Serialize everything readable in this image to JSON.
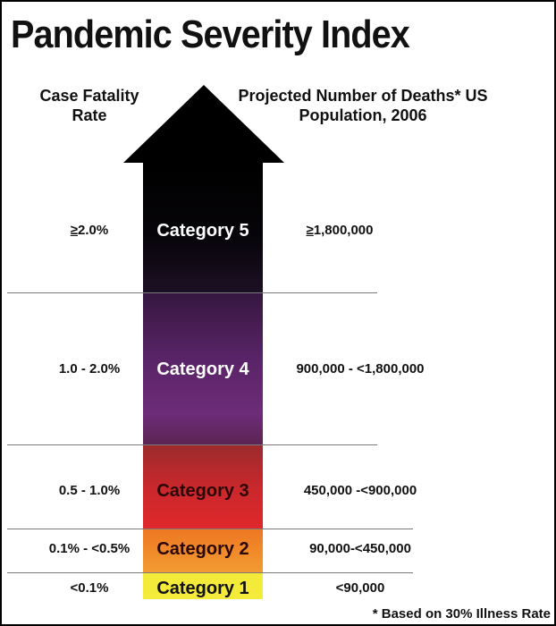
{
  "title": "Pandemic Severity Index",
  "headers": {
    "left": "Case Fatality Rate",
    "right": "Projected Number of Deaths* US Population, 2006"
  },
  "rows": [
    {
      "category": "Category 5",
      "cfr_prefix": "≥",
      "cfr": "2.0%",
      "deaths_prefix": "≥",
      "deaths": "1,800,000",
      "label_color": "#ffffff"
    },
    {
      "category": "Category 4",
      "cfr_prefix": "",
      "cfr": "1.0 - 2.0%",
      "deaths_prefix": "",
      "deaths": "900,000 - <1,800,000",
      "label_color": "#ffffff"
    },
    {
      "category": "Category 3",
      "cfr_prefix": "",
      "cfr": "0.5 - 1.0%",
      "deaths_prefix": "",
      "deaths": "450,000 -<900,000",
      "label_color": "#2a0606"
    },
    {
      "category": "Category 2",
      "cfr_prefix": "",
      "cfr": "0.1% - <0.5%",
      "deaths_prefix": "",
      "deaths": "90,000-<450,000",
      "label_color": "#2a0606"
    },
    {
      "category": "Category 1",
      "cfr_prefix": "",
      "cfr": "<0.1%",
      "deaths_prefix": "",
      "deaths": "<90,000",
      "label_color": "#111111"
    }
  ],
  "footnote": "* Based on 30% Illness Rate"
}
